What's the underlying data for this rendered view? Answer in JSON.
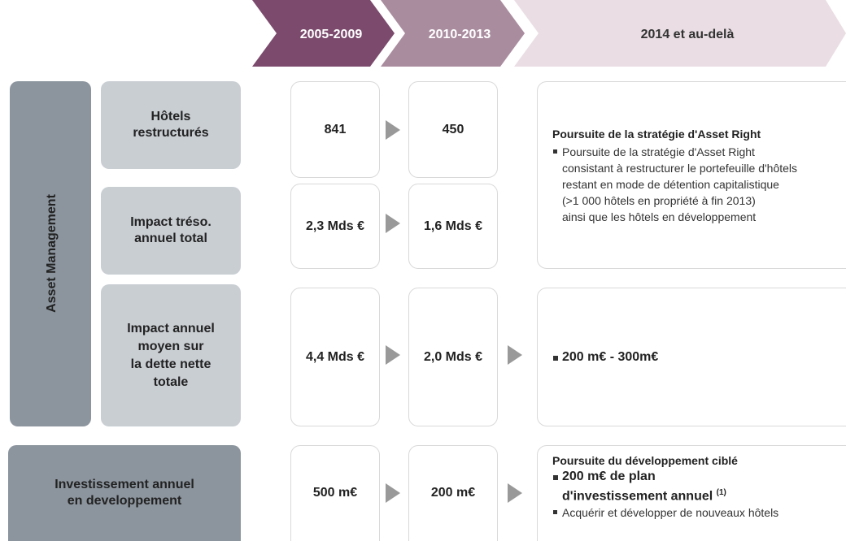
{
  "header": {
    "periods": [
      "2005-2009",
      "2010-2013",
      "2014 et au-delà"
    ]
  },
  "side_label": "Asset Management",
  "rows": [
    {
      "label_lines": [
        "Hôtels",
        "restructurés"
      ],
      "values": [
        "841",
        "450"
      ]
    },
    {
      "label_lines": [
        "Impact tréso.",
        "annuel total"
      ],
      "values": [
        "2,3 Mds €",
        "1,6 Mds €"
      ]
    },
    {
      "label_lines": [
        "Impact annuel",
        "moyen sur",
        "la dette nette",
        "totale"
      ],
      "values": [
        "4,4 Mds €",
        "2,0 Mds €"
      ]
    },
    {
      "label_lines": [
        "Investissement annuel",
        "en developpement"
      ],
      "values": [
        "500 m€",
        "200 m€"
      ]
    }
  ],
  "outlook": {
    "asset_right": {
      "title": "Poursuite de la stratégie d'Asset Right",
      "bullet_lines": [
        "Poursuite de la stratégie d'Asset Right",
        "consistant à restructurer le portefeuille d'hôtels",
        "restant en mode de détention capitalistique",
        "(>1 000 hôtels en propriété à fin 2013)",
        "ainsi que les hôtels en développement"
      ]
    },
    "debt": {
      "bullet": "200 m€ - 300m€"
    },
    "development": {
      "title": "Poursuite du développement ciblé",
      "bold_bullet_lines": [
        "200 m€ de plan",
        "d'investissement annuel"
      ],
      "footnote": "(1)",
      "bullet": "Acquérir et développer de nouveaux hôtels"
    }
  }
}
